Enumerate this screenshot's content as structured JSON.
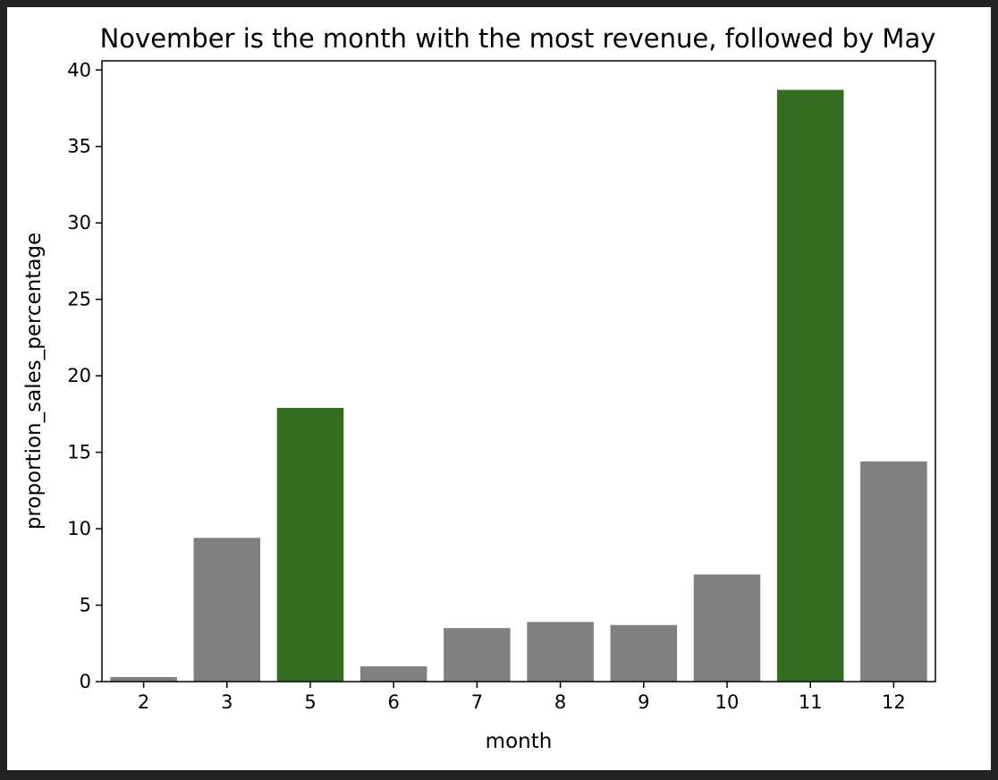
{
  "colors": {
    "frame": "#232323",
    "background": "#ffffff",
    "highlight": "#336e21",
    "default_bar": "#808080",
    "axis": "#000000"
  },
  "chart_data": {
    "type": "bar",
    "title": "November is the month with the most revenue, followed by May",
    "xlabel": "month",
    "ylabel": "proportion_sales_percentage",
    "categories": [
      "2",
      "3",
      "5",
      "6",
      "7",
      "8",
      "9",
      "10",
      "11",
      "12"
    ],
    "values": [
      0.3,
      9.4,
      17.9,
      1.0,
      3.5,
      3.9,
      3.7,
      7.0,
      38.7,
      14.4
    ],
    "highlighted": [
      "5",
      "11"
    ],
    "ylim": [
      0,
      40.6
    ],
    "yticks": [
      0,
      5,
      10,
      15,
      20,
      25,
      30,
      35,
      40
    ],
    "grid": false,
    "legend": "none"
  }
}
